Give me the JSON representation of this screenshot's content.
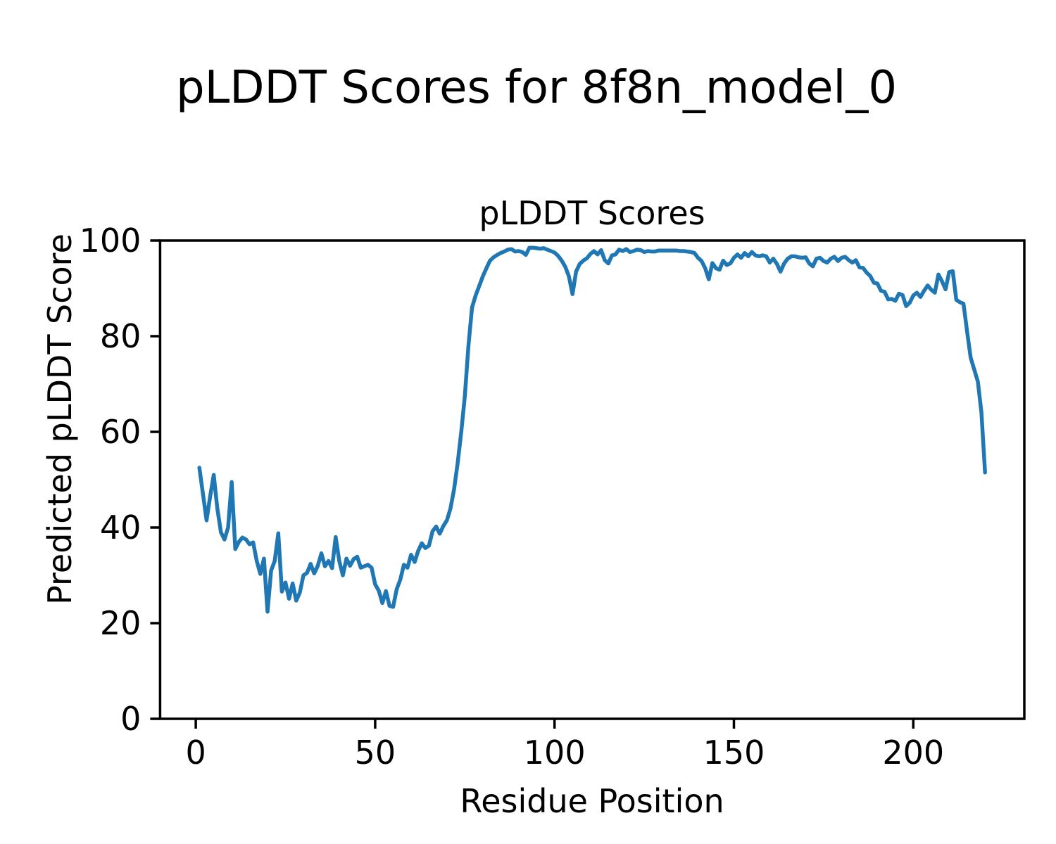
{
  "figure": {
    "title": "pLDDT Scores for 8f8n_model_0"
  },
  "chart_data": {
    "type": "line",
    "title": "pLDDT Scores",
    "xlabel": "Residue Position",
    "ylabel": "Predicted pLDDT Score",
    "xlim": [
      -9.95,
      230.95
    ],
    "ylim": [
      0,
      100
    ],
    "x_ticks": [
      0,
      50,
      100,
      150,
      200
    ],
    "y_ticks": [
      0,
      20,
      40,
      60,
      80,
      100
    ],
    "grid": false,
    "legend": "none",
    "line_color": "#1f77b4",
    "axis_color": "#000000",
    "series": [
      {
        "name": "pLDDT",
        "x_start": 1,
        "x_step": 1,
        "values": [
          52.5,
          47.0,
          41.5,
          46.5,
          51.0,
          44.0,
          39.0,
          37.5,
          40.0,
          49.5,
          35.5,
          37.0,
          37.9,
          37.5,
          36.5,
          36.9,
          33.0,
          30.3,
          33.5,
          22.4,
          31.0,
          33.0,
          38.8,
          26.6,
          28.5,
          25.1,
          28.3,
          24.7,
          26.4,
          30.0,
          30.5,
          32.4,
          30.4,
          32.0,
          34.6,
          31.9,
          33.0,
          31.5,
          38.0,
          33.0,
          30.0,
          33.5,
          32.0,
          33.4,
          33.9,
          31.6,
          31.9,
          32.2,
          31.6,
          28.1,
          26.8,
          24.2,
          26.7,
          23.6,
          23.4,
          27.1,
          29.1,
          32.2,
          31.6,
          34.3,
          32.8,
          35.1,
          36.7,
          35.7,
          36.2,
          39.2,
          40.2,
          38.7,
          40.3,
          41.5,
          44.0,
          48.0,
          53.5,
          60.0,
          67.5,
          78.0,
          86.0,
          88.5,
          90.5,
          92.5,
          94.2,
          95.8,
          96.5,
          97.0,
          97.4,
          97.7,
          98.1,
          98.2,
          97.7,
          97.8,
          97.6,
          97.0,
          98.5,
          98.5,
          98.4,
          98.3,
          98.4,
          98.1,
          97.8,
          97.5,
          96.8,
          95.8,
          94.5,
          92.5,
          88.8,
          93.5,
          95.1,
          95.8,
          96.3,
          97.2,
          97.8,
          97.1,
          98.0,
          95.9,
          95.2,
          96.9,
          97.1,
          98.1,
          97.8,
          98.2,
          97.6,
          97.8,
          98.1,
          98.0,
          97.6,
          97.8,
          97.7,
          97.7,
          97.9,
          97.9,
          97.9,
          97.9,
          97.9,
          97.9,
          97.8,
          97.8,
          97.7,
          97.6,
          97.4,
          96.4,
          95.7,
          94.2,
          91.9,
          95.3,
          94.2,
          93.9,
          95.8,
          94.9,
          95.2,
          96.4,
          97.1,
          96.4,
          97.4,
          96.7,
          97.6,
          96.9,
          96.7,
          96.9,
          96.7,
          95.4,
          96.2,
          95.1,
          93.5,
          95.2,
          96.2,
          96.7,
          96.7,
          96.5,
          96.4,
          96.5,
          95.2,
          94.6,
          96.2,
          96.4,
          95.7,
          95.4,
          96.2,
          96.6,
          95.7,
          96.4,
          96.6,
          95.9,
          95.4,
          95.9,
          94.4,
          94.3,
          93.3,
          92.6,
          91.2,
          91.0,
          89.5,
          89.3,
          87.7,
          87.8,
          87.4,
          88.9,
          88.6,
          86.3,
          87.0,
          88.5,
          89.1,
          88.2,
          89.5,
          90.6,
          89.7,
          89.1,
          92.9,
          91.5,
          89.8,
          93.4,
          93.6,
          87.6,
          87.1,
          86.8,
          81.0,
          75.5,
          73.0,
          70.5,
          64.0,
          51.5
        ]
      }
    ]
  }
}
